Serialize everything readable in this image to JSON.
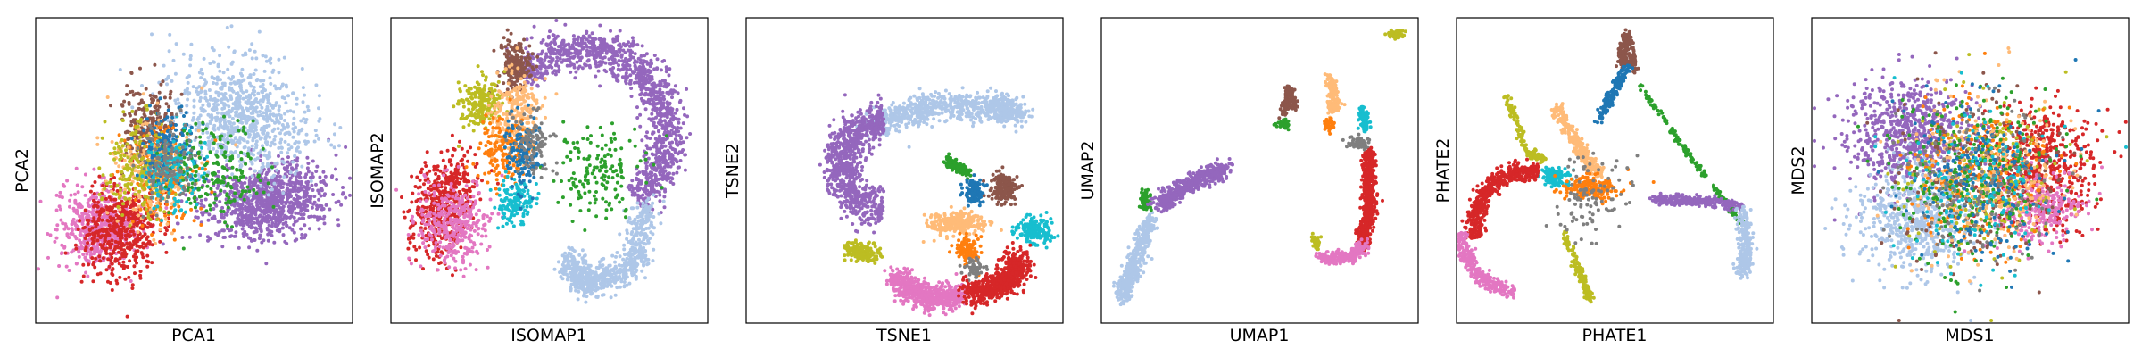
{
  "chart_data": [
    {
      "type": "scatter",
      "xlabel": "PCA1",
      "ylabel": "PCA2",
      "xticks": [],
      "yticks": [],
      "grid": false,
      "legend": "none"
    },
    {
      "type": "scatter",
      "xlabel": "ISOMAP1",
      "ylabel": "ISOMAP2",
      "xticks": [],
      "yticks": [],
      "grid": false,
      "legend": "none"
    },
    {
      "type": "scatter",
      "xlabel": "TSNE1",
      "ylabel": "TSNE2",
      "xticks": [],
      "yticks": [],
      "grid": false,
      "legend": "none"
    },
    {
      "type": "scatter",
      "xlabel": "UMAP1",
      "ylabel": "UMAP2",
      "xticks": [],
      "yticks": [],
      "grid": false,
      "legend": "none"
    },
    {
      "type": "scatter",
      "xlabel": "PHATE1",
      "ylabel": "PHATE2",
      "xticks": [],
      "yticks": [],
      "grid": false,
      "legend": "none"
    },
    {
      "type": "scatter",
      "xlabel": "MDS1",
      "ylabel": "MDS2",
      "xticks": [],
      "yticks": [],
      "grid": false,
      "legend": "none"
    }
  ],
  "colors": {
    "purple": "#9467bd",
    "light_blue": "#aec7e8",
    "red": "#d62728",
    "pink": "#e377c2",
    "brown": "#8c564b",
    "olive": "#bcbd22",
    "orange": "#ff7f0e",
    "peach": "#ffbb78",
    "green": "#2ca02c",
    "blue": "#1f77b4",
    "cyan": "#17becf",
    "gray": "#7f7f7f",
    "frame": "#000000"
  }
}
